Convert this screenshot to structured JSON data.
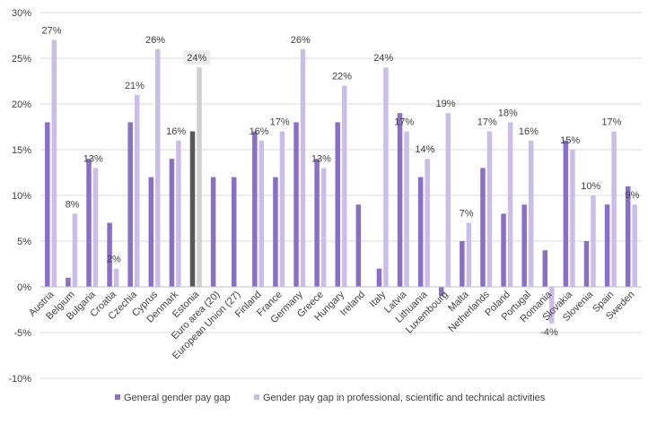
{
  "colors": {
    "general": "#8a6fc8",
    "professional": "#cbbdea",
    "highlight_general": "#595959",
    "highlight_professional": "#d0d0d0",
    "highlight_label_bg": "#ececec",
    "grid": "#d9d9d9",
    "axis": "#bfbfbf",
    "text": "#404040"
  },
  "chart_data": {
    "type": "bar",
    "title": "",
    "xlabel": "",
    "ylabel": "",
    "ylim": [
      -10,
      30
    ],
    "y_ticks": [
      30,
      25,
      20,
      15,
      10,
      5,
      0,
      -5,
      -10
    ],
    "y_tick_labels": [
      "30%",
      "25%",
      "20%",
      "15%",
      "10%",
      "5%",
      "0%",
      "-5%",
      "-10%"
    ],
    "grid": true,
    "legend_position": "bottom",
    "highlighted_category": "Estonia",
    "categories": [
      "Austria",
      "Belgium",
      "Bulgaria",
      "Croatia",
      "Czechia",
      "Cyprus",
      "Denmark",
      "Estonia",
      "Euro area (20)",
      "European Union (27)",
      "Finland",
      "France",
      "Germany",
      "Greece",
      "Hungary",
      "Ireland",
      "Italy",
      "Latvia",
      "Lithuania",
      "Luxembourg",
      "Malta",
      "Netherlands",
      "Poland",
      "Portugal",
      "Romania",
      "Slovakia",
      "Slovenia",
      "Spain",
      "Sweden"
    ],
    "series": [
      {
        "name": "General gender pay gap",
        "values": [
          18,
          1,
          14,
          7,
          18,
          12,
          14,
          17,
          12,
          12,
          17,
          12,
          18,
          14,
          18,
          9,
          2,
          19,
          12,
          -1,
          5,
          13,
          8,
          9,
          4,
          16,
          5,
          9,
          11
        ]
      },
      {
        "name": "Gender pay gap in professional, scientific and technical activities",
        "values": [
          27,
          8,
          13,
          2,
          21,
          26,
          16,
          24,
          null,
          null,
          16,
          17,
          26,
          13,
          22,
          null,
          24,
          17,
          14,
          19,
          7,
          17,
          18,
          16,
          -4,
          15,
          10,
          17,
          9
        ],
        "data_labels": [
          "27%",
          "8%",
          "13%",
          "2%",
          "21%",
          "26%",
          "16%",
          "24%",
          "",
          "",
          "16%",
          "17%",
          "26%",
          "13%",
          "22%",
          "",
          "24%",
          "17%",
          "14%",
          "19%",
          "7%",
          "17%",
          "18%",
          "16%",
          "-4%",
          "15%",
          "10%",
          "17%",
          "9%"
        ]
      }
    ]
  }
}
